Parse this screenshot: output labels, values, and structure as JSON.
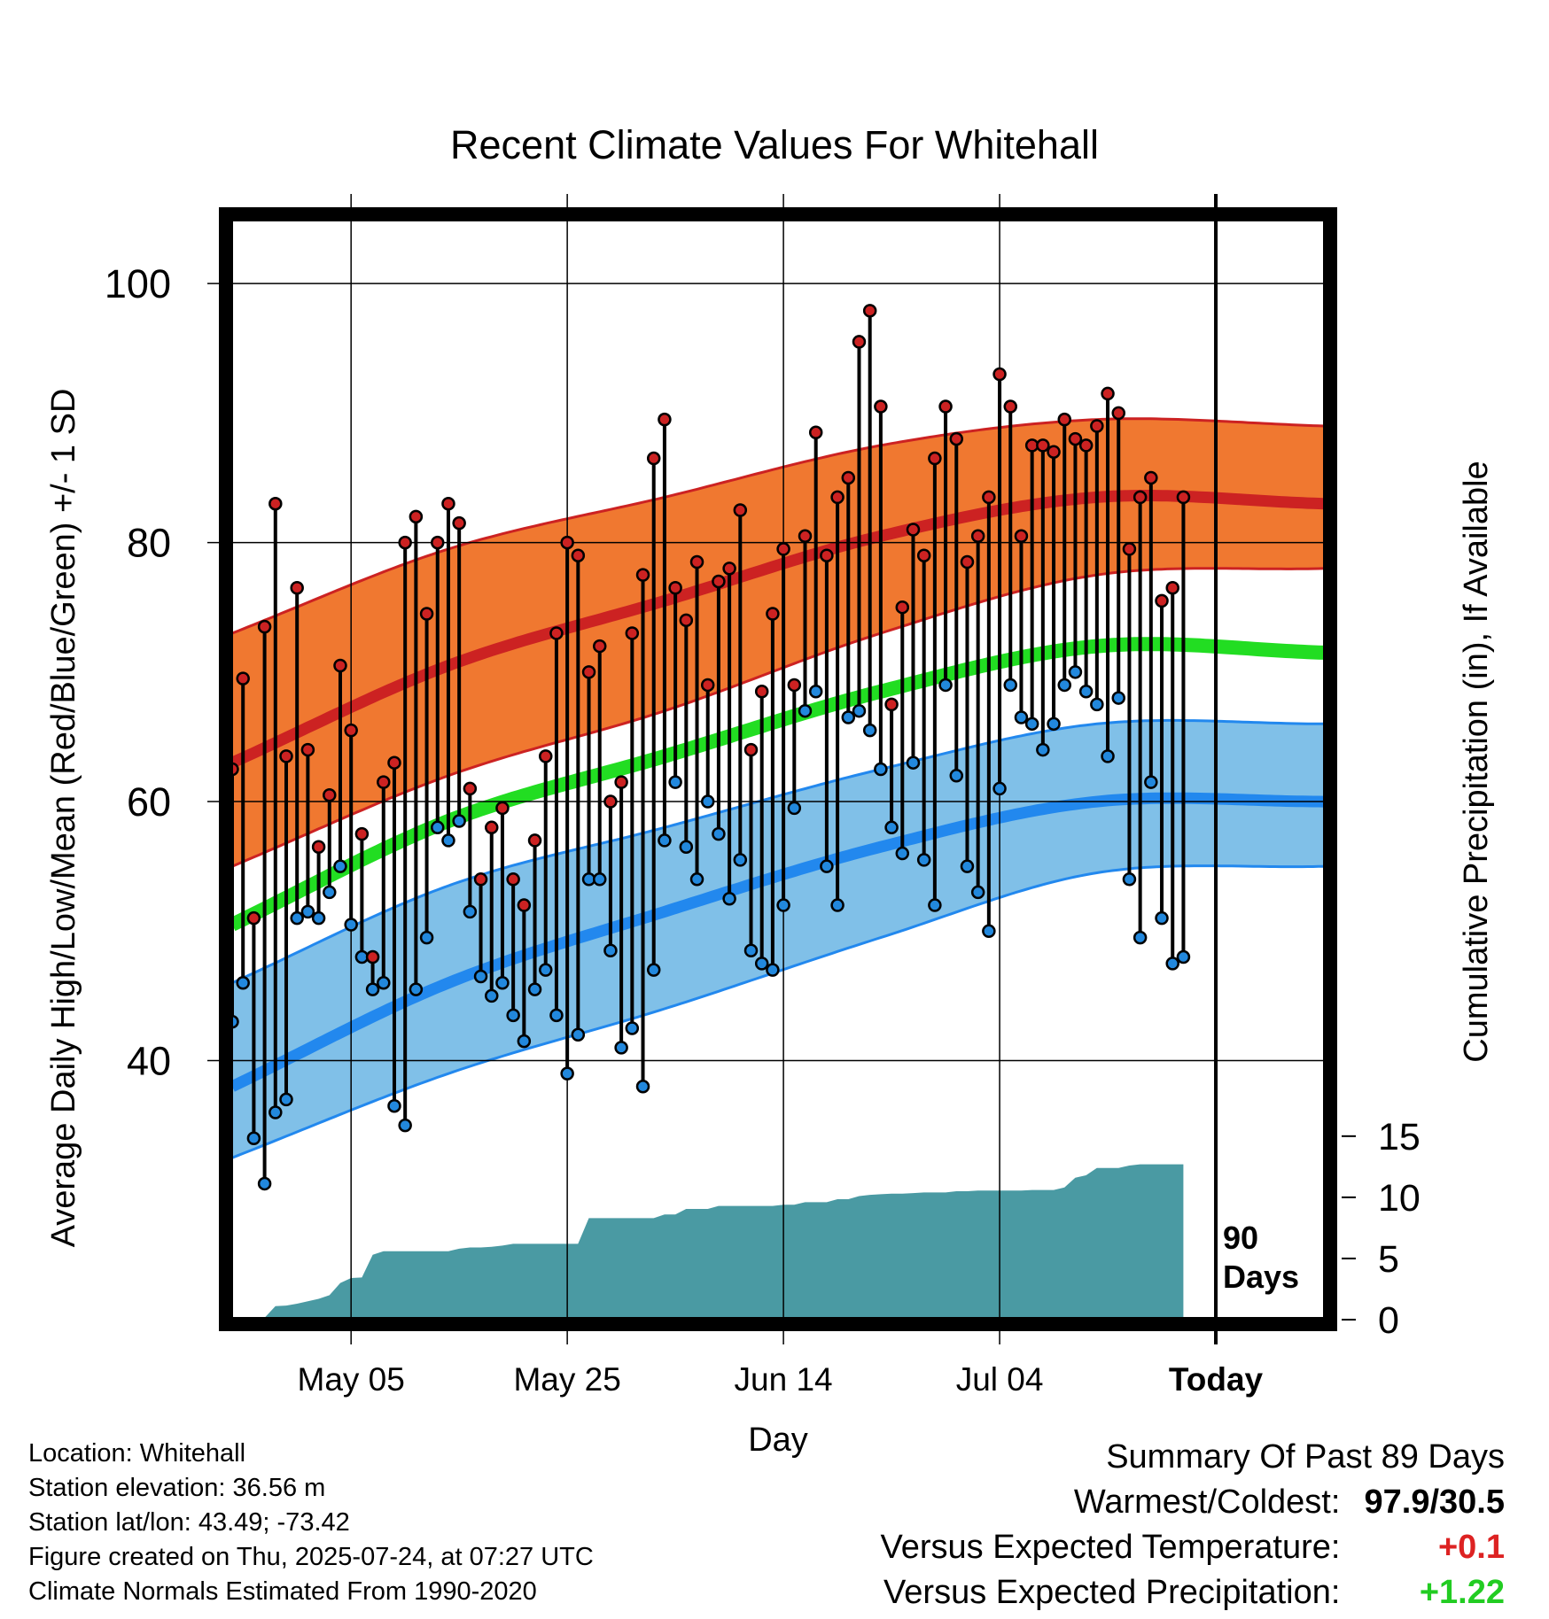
{
  "title": "Recent Climate Values For Whitehall",
  "chart_data": {
    "type": "line",
    "title": "Recent Climate Values For Whitehall",
    "xlabel": "Day",
    "ylabel": "Average Daily High/Low/Mean (Red/Blue/Green) +/- 1 SD",
    "y2label": "Cumulative Precipitation (in), If Available",
    "x_start": "2025-04-24",
    "xlim": [
      "2025-04-24",
      "2025-08-03"
    ],
    "ylim": [
      20,
      105
    ],
    "y2lim": [
      0,
      90
    ],
    "grid": true,
    "x_ticks": [
      {
        "date": "2025-05-05",
        "label": "May 05"
      },
      {
        "date": "2025-05-25",
        "label": "May 25"
      },
      {
        "date": "2025-06-14",
        "label": "Jun 14"
      },
      {
        "date": "2025-07-04",
        "label": "Jul 04"
      },
      {
        "date": "2025-07-24",
        "label": "Today"
      }
    ],
    "y_ticks": [
      40,
      60,
      80,
      100
    ],
    "y2_ticks": [
      0,
      5,
      10,
      15
    ],
    "marker_label": "90\nDays",
    "normals": {
      "dates": [
        "2025-04-24",
        "2025-05-14",
        "2025-06-03",
        "2025-06-23",
        "2025-07-13",
        "2025-08-03"
      ],
      "high_mean": [
        63,
        70.5,
        75.5,
        80.5,
        83.5,
        83
      ],
      "high_upper": [
        73,
        79.5,
        83.5,
        87.5,
        89.5,
        89
      ],
      "high_lower": [
        55,
        62,
        67,
        73,
        77.5,
        78
      ],
      "mean": [
        50.5,
        58.5,
        63.5,
        68.5,
        72,
        71.5
      ],
      "low_mean": [
        38,
        46,
        51.5,
        56.5,
        60,
        60
      ],
      "low_upper": [
        46,
        53.5,
        58,
        62.5,
        66,
        66
      ],
      "low_lower": [
        32.5,
        39,
        44,
        49.5,
        54.5,
        55
      ]
    },
    "series": [
      {
        "name": "High",
        "color": "#cc2222",
        "values": [
          62.5,
          69.5,
          51,
          73.5,
          83,
          63.5,
          76.5,
          64,
          56.5,
          60.5,
          70.5,
          65.5,
          57.5,
          48,
          61.5,
          63,
          80,
          82,
          74.5,
          80,
          83,
          81.5,
          61,
          54,
          58,
          59.5,
          54,
          52,
          57,
          63.5,
          73,
          80,
          79,
          70,
          72,
          60,
          61.5,
          73,
          77.5,
          86.5,
          89.5,
          76.5,
          74,
          78.5,
          69,
          77,
          78,
          82.5,
          64,
          68.5,
          74.5,
          79.5,
          69,
          80.5,
          88.5,
          79,
          83.5,
          85,
          95.5,
          97.9,
          90.5,
          67.5,
          75,
          81,
          79,
          86.5,
          90.5,
          88,
          78.5,
          80.5,
          83.5,
          93,
          90.5,
          80.5,
          87.5,
          87.5,
          87,
          89.5,
          88,
          87.5,
          89,
          91.5,
          90,
          79.5,
          83.5,
          85,
          75.5,
          76.5,
          83.5
        ]
      },
      {
        "name": "Low",
        "color": "#2288dd",
        "values": [
          43,
          46,
          34,
          30.5,
          36,
          37,
          51,
          51.5,
          51,
          53,
          55,
          50.5,
          48,
          45.5,
          46,
          36.5,
          35,
          45.5,
          49.5,
          58,
          57,
          58.5,
          51.5,
          46.5,
          45,
          46,
          43.5,
          41.5,
          45.5,
          47,
          43.5,
          39,
          42,
          54,
          54,
          48.5,
          41,
          42.5,
          38,
          47,
          57,
          61.5,
          56.5,
          54,
          60,
          57.5,
          52.5,
          55.5,
          48.5,
          47.5,
          47,
          52,
          59.5,
          67,
          68.5,
          55,
          52,
          66.5,
          67,
          65.5,
          62.5,
          58,
          56,
          63,
          55.5,
          52,
          69,
          62,
          55,
          53,
          50,
          61,
          69,
          66.5,
          66,
          64,
          66,
          69,
          70,
          68.5,
          67.5,
          63.5,
          68,
          54,
          49.5,
          61.5,
          51,
          47.5,
          48
        ]
      },
      {
        "name": "Cumulative Precipitation",
        "color": "#4a9aa3",
        "values": [
          0,
          0.05,
          0.1,
          0.15,
          1.1,
          1.15,
          1.3,
          1.5,
          1.7,
          2,
          3,
          3.4,
          3.45,
          5.3,
          5.6,
          5.6,
          5.6,
          5.6,
          5.6,
          5.6,
          5.6,
          5.8,
          5.9,
          5.9,
          5.95,
          6.05,
          6.2,
          6.2,
          6.2,
          6.2,
          6.2,
          6.2,
          6.2,
          8.3,
          8.3,
          8.3,
          8.3,
          8.3,
          8.3,
          8.3,
          8.6,
          8.6,
          9.05,
          9.05,
          9.05,
          9.3,
          9.3,
          9.3,
          9.3,
          9.3,
          9.3,
          9.4,
          9.4,
          9.6,
          9.6,
          9.6,
          9.85,
          9.85,
          10.1,
          10.2,
          10.25,
          10.3,
          10.3,
          10.35,
          10.4,
          10.4,
          10.4,
          10.5,
          10.5,
          10.55,
          10.55,
          10.55,
          10.55,
          10.55,
          10.6,
          10.6,
          10.6,
          10.8,
          11.6,
          11.8,
          12.4,
          12.4,
          12.4,
          12.6,
          12.7,
          12.7,
          12.7,
          12.7,
          12.7
        ]
      }
    ]
  },
  "meta": {
    "location": "Location: Whitehall",
    "elevation": "Station elevation: 36.56 m",
    "latlon": "Station lat/lon: 43.49; -73.42",
    "created": "Figure created on Thu, 2025-07-24, at 07:27 UTC",
    "normals": "Climate Normals Estimated From 1990-2020"
  },
  "summary": {
    "heading": "Summary Of Past 89 Days",
    "warm_label": "Warmest/Coldest:",
    "warm_value": "97.9/30.5",
    "temp_label": "Versus Expected Temperature:",
    "temp_value": "+0.1",
    "temp_color": "#dd2222",
    "precip_label": "Versus Expected Precipitation:",
    "precip_value": "+1.22",
    "precip_color": "#22cc22"
  }
}
